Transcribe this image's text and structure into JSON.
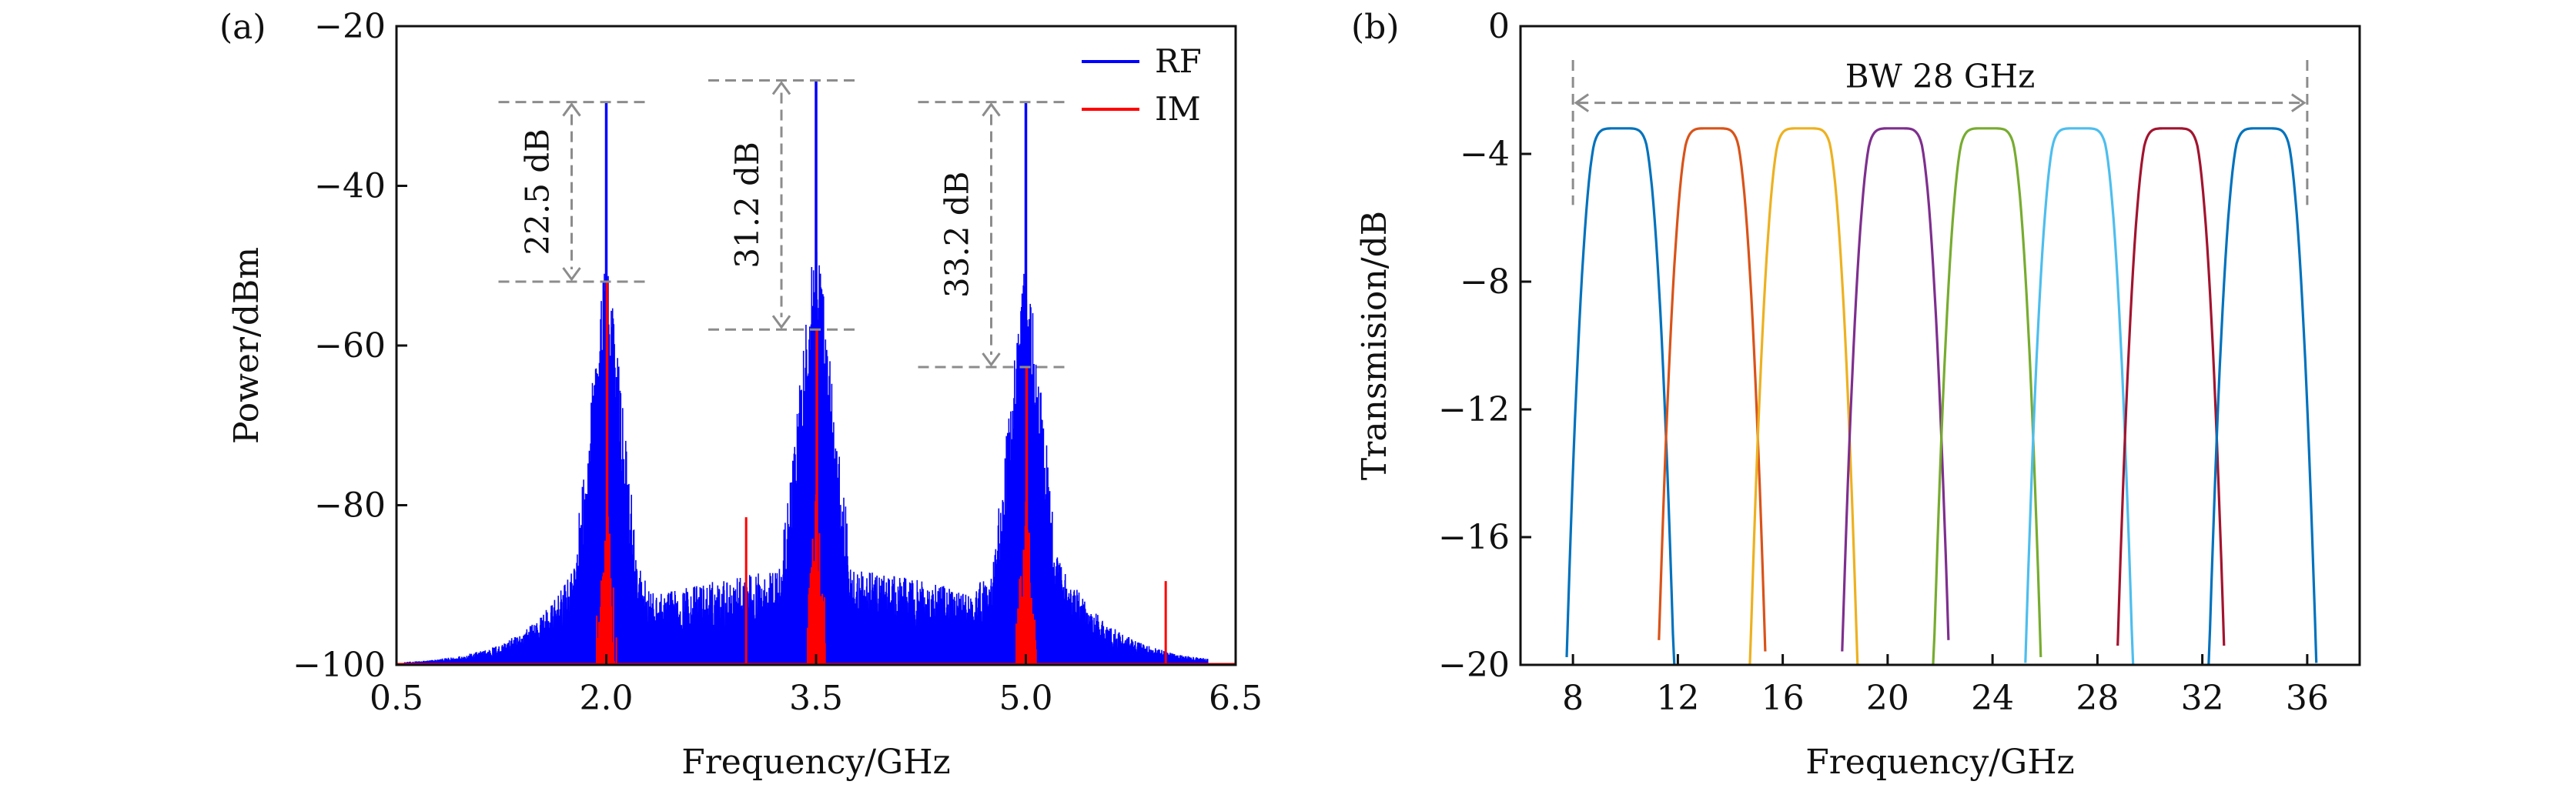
{
  "chart_data": [
    {
      "id": "a",
      "type": "line",
      "panel_label": "(a)",
      "xlabel": "Frequency/GHz",
      "ylabel": "Power/dBm",
      "xlim": [
        0.5,
        6.5
      ],
      "ylim": [
        -100,
        -20
      ],
      "xticks": [
        0.5,
        2.0,
        3.5,
        5.0,
        6.5
      ],
      "xtick_labels": [
        "0.5",
        "2.0",
        "3.5",
        "5.0",
        "6.5"
      ],
      "yticks": [
        -100,
        -80,
        -60,
        -40,
        -20
      ],
      "ytick_labels": [
        "−100",
        "−80",
        "−60",
        "−40",
        "−20"
      ],
      "grid": false,
      "legend_position": "top-right",
      "series": [
        {
          "name": "RF",
          "color": "#0000ff",
          "peaks": [
            {
              "x": 2.0,
              "y": -29.5
            },
            {
              "x": 3.5,
              "y": -26.8
            },
            {
              "x": 5.0,
              "y": -29.5
            }
          ],
          "noise_floor": -100,
          "x_range": [
            0.5,
            6.3
          ]
        },
        {
          "name": "IM",
          "color": "#ff0000",
          "peaks": [
            {
              "x": 2.0,
              "y": -52.0
            },
            {
              "x": 3.5,
              "y": -58.0
            },
            {
              "x": 5.0,
              "y": -62.7
            }
          ],
          "spurs": [
            {
              "x": 3.0,
              "y": -81.5
            },
            {
              "x": 6.0,
              "y": -89.5
            }
          ],
          "noise_floor": -100
        }
      ],
      "annotations": [
        {
          "text": "22.5 dB",
          "x": 2.0,
          "y_top": -29.5,
          "y_bottom": -52.0
        },
        {
          "text": "31.2 dB",
          "x": 3.5,
          "y_top": -26.8,
          "y_bottom": -58.0
        },
        {
          "text": "33.2 dB",
          "x": 5.0,
          "y_top": -29.5,
          "y_bottom": -62.7
        }
      ]
    },
    {
      "id": "b",
      "type": "line",
      "panel_label": "(b)",
      "xlabel": "Frequency/GHz",
      "ylabel": "Transmision/dB",
      "xlim": [
        6,
        38
      ],
      "ylim": [
        -20,
        0
      ],
      "xticks": [
        8,
        12,
        16,
        20,
        24,
        28,
        32,
        36
      ],
      "xtick_labels": [
        "8",
        "12",
        "16",
        "20",
        "24",
        "28",
        "32",
        "36"
      ],
      "yticks": [
        -20,
        -16,
        -12,
        -8,
        -4,
        0
      ],
      "ytick_labels": [
        "−20",
        "−16",
        "−12",
        "−8",
        "−4",
        "0"
      ],
      "grid": false,
      "passband_top_db": -3.2,
      "passband_width_ghz": 2.0,
      "series": [
        {
          "center": 9.8,
          "color": "#0072bd"
        },
        {
          "center": 13.3,
          "color": "#d95319"
        },
        {
          "center": 16.8,
          "color": "#edb120"
        },
        {
          "center": 20.3,
          "color": "#7e2f8e"
        },
        {
          "center": 23.8,
          "color": "#77ac30"
        },
        {
          "center": 27.3,
          "color": "#4dbeee"
        },
        {
          "center": 30.8,
          "color": "#a2142f"
        },
        {
          "center": 34.3,
          "color": "#0072bd"
        }
      ],
      "annotation": {
        "text": "BW 28 GHz",
        "x_start": 8,
        "x_end": 36,
        "y": -2.4
      }
    }
  ]
}
